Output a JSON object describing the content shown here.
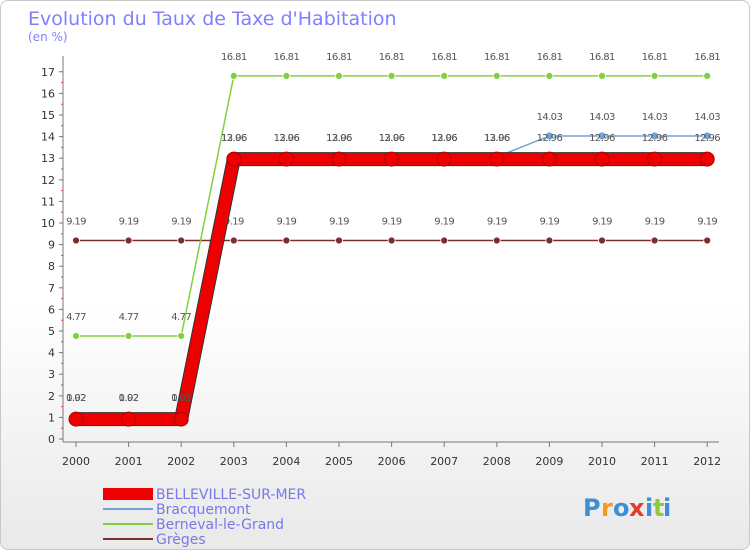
{
  "chart_data": {
    "type": "line",
    "title": "Evolution du Taux de Taxe d'Habitation",
    "ylabel": "(en %)",
    "xlabel": "",
    "x": [
      "2000",
      "2001",
      "2002",
      "2003",
      "2004",
      "2005",
      "2006",
      "2007",
      "2008",
      "2009",
      "2010",
      "2011",
      "2012"
    ],
    "ylim": [
      0,
      17
    ],
    "yticks": [
      0,
      1,
      2,
      3,
      4,
      5,
      6,
      7,
      8,
      9,
      10,
      11,
      12,
      13,
      14,
      15,
      16,
      17
    ],
    "grid": false,
    "legend_position": "bottom-left",
    "series": [
      {
        "name": "BELLEVILLE-SUR-MER",
        "color": "#ee0000",
        "values": [
          0.92,
          0.92,
          0.92,
          12.96,
          12.96,
          12.96,
          12.96,
          12.96,
          12.96,
          12.96,
          12.96,
          12.96,
          12.96
        ],
        "labels": [
          "0.92",
          "0.92",
          "0.92",
          "12.96",
          "12.96",
          "12.96",
          "12.96",
          "12.96",
          "12.96",
          "12.96",
          "12.96",
          "12.96",
          "12.96"
        ],
        "show_labels": [
          true,
          true,
          true,
          true,
          true,
          true,
          true,
          true,
          true,
          true,
          true,
          true,
          true
        ]
      },
      {
        "name": "Bracquemont",
        "color": "#6fa3d8",
        "values": [
          1.02,
          1.02,
          1.02,
          13.06,
          13.06,
          13.06,
          13.06,
          13.06,
          13.06,
          14.03,
          14.03,
          14.03,
          14.03
        ],
        "labels": [
          "1.02",
          "1.02",
          "1.02",
          "13.06",
          "13.06",
          "13.06",
          "13.06",
          "13.06",
          "13.06",
          "14.03",
          "14.03",
          "14.03",
          "14.03"
        ],
        "show_labels": [
          true,
          true,
          true,
          true,
          true,
          true,
          true,
          true,
          true,
          true,
          true,
          true,
          true
        ]
      },
      {
        "name": "Berneval-le-Grand",
        "color": "#80d040",
        "values": [
          4.77,
          4.77,
          4.77,
          16.81,
          16.81,
          16.81,
          16.81,
          16.81,
          16.81,
          16.81,
          16.81,
          16.81,
          16.81
        ],
        "labels": [
          "4.77",
          "4.77",
          "4.77",
          "16.81",
          "16.81",
          "16.81",
          "16.81",
          "16.81",
          "16.81",
          "16.81",
          "16.81",
          "16.81",
          "16.81"
        ],
        "show_labels": [
          true,
          true,
          true,
          true,
          true,
          true,
          true,
          true,
          true,
          true,
          true,
          true,
          true
        ]
      },
      {
        "name": "Grèges",
        "color": "#7a2e2e",
        "values": [
          9.19,
          9.19,
          9.19,
          9.19,
          9.19,
          9.19,
          9.19,
          9.19,
          9.19,
          9.19,
          9.19,
          9.19,
          9.19
        ],
        "labels": [
          "9.19",
          "9.19",
          "9.19",
          "9.19",
          "9.19",
          "9.19",
          "9.19",
          "9.19",
          "9.19",
          "9.19",
          "9.19",
          "9.19",
          "9.19"
        ],
        "show_labels": [
          true,
          true,
          true,
          true,
          true,
          true,
          true,
          true,
          true,
          true,
          true,
          true,
          true
        ]
      }
    ]
  },
  "brand": {
    "letters": [
      "P",
      "r",
      "o",
      "x",
      "i",
      "t",
      "i"
    ],
    "colors": [
      "#3a8fd8",
      "#f39a1e",
      "#3a8fd8",
      "#e83a2a",
      "#3a8fd8",
      "#8fc83c",
      "#3a8fd8"
    ]
  }
}
